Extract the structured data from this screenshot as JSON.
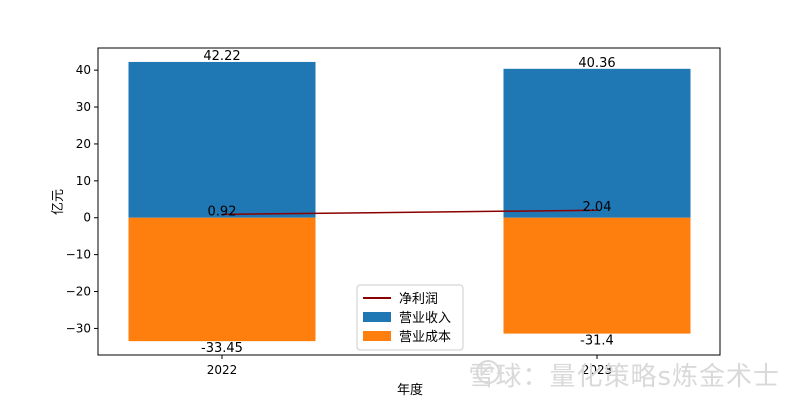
{
  "chart_data": {
    "type": "bar",
    "categories": [
      "2022",
      "2023"
    ],
    "series": [
      {
        "name": "营业收入",
        "kind": "bar",
        "color": "#1f77b4",
        "values": [
          42.22,
          40.36
        ],
        "labels": [
          "42.22",
          "40.36"
        ]
      },
      {
        "name": "营业成本",
        "kind": "bar",
        "color": "#ff7f0e",
        "values": [
          -33.45,
          -31.4
        ],
        "labels": [
          "-33.45",
          "-31.4"
        ]
      },
      {
        "name": "净利润",
        "kind": "line",
        "color": "#8b0000",
        "values": [
          0.92,
          2.04
        ],
        "labels": [
          "0.92",
          "2.04"
        ]
      }
    ],
    "xlabel": "年度",
    "ylabel": "亿元",
    "ylim": [
      -37.2,
      46.0
    ],
    "yticks": [
      40,
      30,
      20,
      10,
      0,
      -10,
      -20,
      -30
    ],
    "ytick_labels": [
      "40",
      "30",
      "20",
      "10",
      "0",
      "−10",
      "−20",
      "−30"
    ],
    "grid": false,
    "legend_position": "lower center"
  },
  "watermark": {
    "text": "雪球：量化策略s炼金术士"
  }
}
